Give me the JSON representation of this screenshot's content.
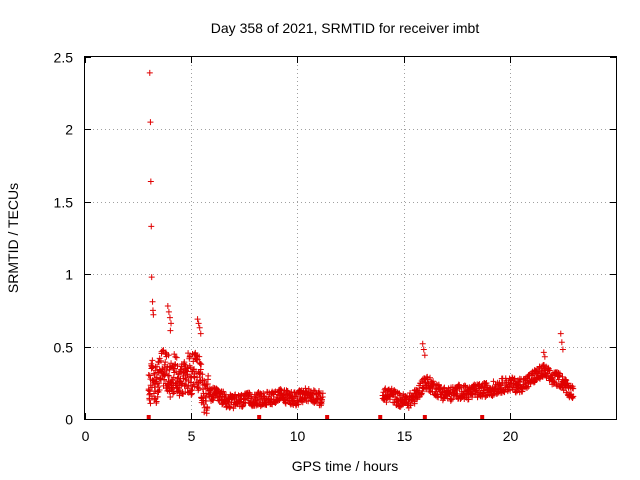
{
  "chart_data": {
    "type": "scatter",
    "title": "Day 358 of 2021, SRMTID for receiver imbt",
    "xlabel": "GPS time / hours",
    "ylabel": "SRMTID / TECUs",
    "xlim": [
      0,
      25
    ],
    "ylim": [
      0,
      2.5
    ],
    "xticks": [
      0,
      5,
      10,
      15,
      20
    ],
    "xtick_labels": [
      "0",
      "5",
      "10",
      "15",
      "20"
    ],
    "yticks": [
      0,
      0.5,
      1,
      1.5,
      2,
      2.5
    ],
    "ytick_labels": [
      "0",
      "0.5",
      "1",
      "1.5",
      "2",
      "2.5"
    ],
    "grid": true,
    "marker": "plus",
    "color": "#e00000",
    "outliers": [
      {
        "x": 3.05,
        "y": 2.39
      },
      {
        "x": 3.08,
        "y": 2.05
      },
      {
        "x": 3.1,
        "y": 1.64
      },
      {
        "x": 3.12,
        "y": 1.33
      },
      {
        "x": 3.14,
        "y": 0.98
      },
      {
        "x": 3.18,
        "y": 0.81
      },
      {
        "x": 3.2,
        "y": 0.75
      },
      {
        "x": 3.22,
        "y": 0.72
      },
      {
        "x": 3.9,
        "y": 0.78
      },
      {
        "x": 3.95,
        "y": 0.74
      },
      {
        "x": 4.0,
        "y": 0.7
      },
      {
        "x": 4.05,
        "y": 0.66
      },
      {
        "x": 4.02,
        "y": 0.61
      },
      {
        "x": 5.3,
        "y": 0.69
      },
      {
        "x": 5.35,
        "y": 0.66
      },
      {
        "x": 5.4,
        "y": 0.63
      },
      {
        "x": 5.45,
        "y": 0.59
      },
      {
        "x": 15.9,
        "y": 0.52
      },
      {
        "x": 15.95,
        "y": 0.48
      },
      {
        "x": 16.0,
        "y": 0.44
      },
      {
        "x": 22.4,
        "y": 0.59
      },
      {
        "x": 22.45,
        "y": 0.53
      },
      {
        "x": 22.5,
        "y": 0.48
      },
      {
        "x": 21.6,
        "y": 0.46
      },
      {
        "x": 21.65,
        "y": 0.43
      }
    ],
    "baseline": [
      {
        "x": 3.0,
        "y": 0.18
      },
      {
        "x": 3.2,
        "y": 0.3
      },
      {
        "x": 3.4,
        "y": 0.22
      },
      {
        "x": 3.6,
        "y": 0.38
      },
      {
        "x": 3.8,
        "y": 0.34
      },
      {
        "x": 4.0,
        "y": 0.28
      },
      {
        "x": 4.2,
        "y": 0.32
      },
      {
        "x": 4.4,
        "y": 0.3
      },
      {
        "x": 4.6,
        "y": 0.26
      },
      {
        "x": 4.8,
        "y": 0.33
      },
      {
        "x": 5.0,
        "y": 0.3
      },
      {
        "x": 5.2,
        "y": 0.36
      },
      {
        "x": 5.4,
        "y": 0.28
      },
      {
        "x": 5.6,
        "y": 0.16
      },
      {
        "x": 6.0,
        "y": 0.17
      },
      {
        "x": 6.4,
        "y": 0.15
      },
      {
        "x": 6.8,
        "y": 0.12
      },
      {
        "x": 7.2,
        "y": 0.12
      },
      {
        "x": 7.6,
        "y": 0.13
      },
      {
        "x": 8.0,
        "y": 0.14
      },
      {
        "x": 8.4,
        "y": 0.13
      },
      {
        "x": 8.8,
        "y": 0.15
      },
      {
        "x": 9.2,
        "y": 0.16
      },
      {
        "x": 9.6,
        "y": 0.15
      },
      {
        "x": 10.0,
        "y": 0.14
      },
      {
        "x": 10.4,
        "y": 0.17
      },
      {
        "x": 10.8,
        "y": 0.16
      },
      {
        "x": 11.2,
        "y": 0.13
      },
      {
        "x": 14.0,
        "y": 0.16
      },
      {
        "x": 14.4,
        "y": 0.17
      },
      {
        "x": 14.8,
        "y": 0.13
      },
      {
        "x": 15.2,
        "y": 0.12
      },
      {
        "x": 15.6,
        "y": 0.16
      },
      {
        "x": 16.0,
        "y": 0.26
      },
      {
        "x": 16.4,
        "y": 0.22
      },
      {
        "x": 16.8,
        "y": 0.18
      },
      {
        "x": 17.2,
        "y": 0.17
      },
      {
        "x": 17.6,
        "y": 0.19
      },
      {
        "x": 18.0,
        "y": 0.18
      },
      {
        "x": 18.4,
        "y": 0.19
      },
      {
        "x": 18.8,
        "y": 0.2
      },
      {
        "x": 19.2,
        "y": 0.21
      },
      {
        "x": 19.6,
        "y": 0.23
      },
      {
        "x": 20.0,
        "y": 0.24
      },
      {
        "x": 20.4,
        "y": 0.23
      },
      {
        "x": 20.8,
        "y": 0.25
      },
      {
        "x": 21.2,
        "y": 0.3
      },
      {
        "x": 21.6,
        "y": 0.33
      },
      {
        "x": 22.0,
        "y": 0.28
      },
      {
        "x": 22.4,
        "y": 0.27
      },
      {
        "x": 22.8,
        "y": 0.2
      },
      {
        "x": 23.0,
        "y": 0.19
      }
    ],
    "segments": [
      {
        "start": 3.0,
        "end": 11.4
      },
      {
        "start": 13.9,
        "end": 23.0
      }
    ],
    "gap_markers": [
      3.0,
      8.2,
      11.4,
      13.9,
      16.0,
      18.7
    ]
  }
}
